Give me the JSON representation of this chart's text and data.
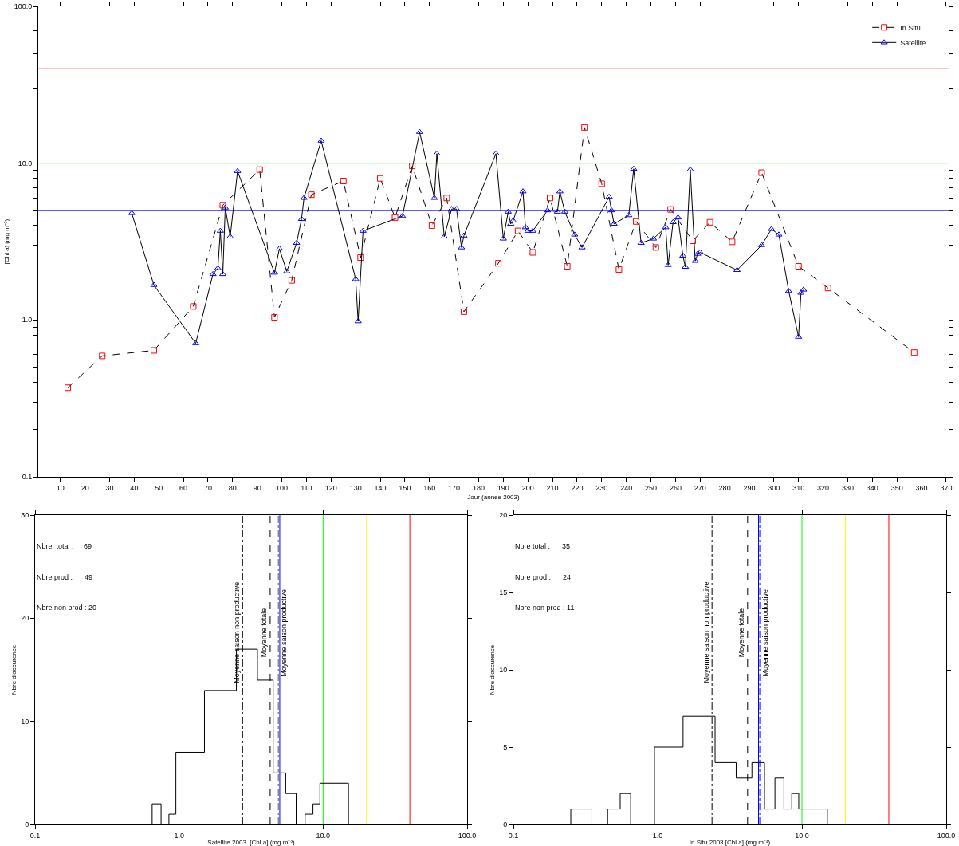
{
  "chart_data": [
    {
      "type": "line",
      "xlabel": "Jour (annee 2003)",
      "ylabel": "[Chl a] (mg m⁻³)",
      "log": "y",
      "legend": "top right",
      "grid": false,
      "xlim": [
        1,
        371
      ],
      "xticks": [
        10,
        20,
        30,
        40,
        50,
        60,
        70,
        80,
        90,
        100,
        110,
        120,
        130,
        140,
        150,
        160,
        170,
        180,
        190,
        200,
        210,
        220,
        230,
        240,
        250,
        260,
        270,
        280,
        290,
        300,
        310,
        320,
        330,
        340,
        350,
        360,
        370
      ],
      "ylim": [
        0.1,
        100
      ],
      "yticks": [
        {
          "value": 0.1,
          "label": "0.1"
        },
        {
          "value": 0.2,
          "label": null
        },
        {
          "value": 0.3,
          "label": null
        },
        {
          "value": 0.4,
          "label": null
        },
        {
          "value": 0.5,
          "label": null
        },
        {
          "value": 0.6,
          "label": null
        },
        {
          "value": 0.7,
          "label": null
        },
        {
          "value": 0.8,
          "label": null
        },
        {
          "value": 0.9,
          "label": null
        },
        {
          "value": 1,
          "label": "1.0"
        },
        {
          "value": 2,
          "label": null
        },
        {
          "value": 3,
          "label": null
        },
        {
          "value": 4,
          "label": null
        },
        {
          "value": 5,
          "label": null
        },
        {
          "value": 6,
          "label": null
        },
        {
          "value": 7,
          "label": null
        },
        {
          "value": 8,
          "label": null
        },
        {
          "value": 9,
          "label": null
        },
        {
          "value": 10,
          "label": "10.0"
        },
        {
          "value": 20,
          "label": null
        },
        {
          "value": 30,
          "label": null
        },
        {
          "value": 40,
          "label": null
        },
        {
          "value": 50,
          "label": null
        },
        {
          "value": 60,
          "label": null
        },
        {
          "value": 70,
          "label": null
        },
        {
          "value": 80,
          "label": null
        },
        {
          "value": 90,
          "label": null
        },
        {
          "value": 100,
          "label": "100.0"
        }
      ],
      "series": [
        {
          "name": "In Situ",
          "color": "#ff0000",
          "marker": "square",
          "line_style": "dashed",
          "x": [
            13,
            27,
            48,
            64,
            76,
            91,
            97,
            104,
            112,
            125,
            132,
            140,
            146,
            153,
            161,
            167,
            174,
            188,
            196,
            202,
            209,
            216,
            223,
            230,
            237,
            244,
            252,
            258,
            267,
            274,
            283,
            295,
            310,
            322,
            357
          ],
          "values": [
            0.37,
            0.59,
            0.64,
            1.22,
            5.4,
            9.1,
            1.04,
            1.79,
            6.3,
            7.7,
            2.5,
            8.0,
            4.5,
            9.6,
            4.0,
            6.0,
            1.13,
            2.3,
            3.7,
            2.7,
            6.0,
            2.2,
            16.9,
            7.4,
            2.1,
            4.25,
            2.9,
            5.07,
            3.2,
            4.2,
            3.15,
            8.7,
            2.2,
            1.6,
            0.62
          ]
        },
        {
          "name": "Satellite",
          "color": "#0000ff",
          "marker": "triangle",
          "line_style": "solid",
          "x": [
            39,
            48,
            65,
            72,
            74,
            75,
            76,
            77,
            79,
            82,
            97,
            99,
            102,
            106,
            108,
            109,
            116,
            130,
            131,
            133,
            149,
            156,
            162,
            163,
            166,
            169,
            171,
            173,
            174,
            187,
            190,
            192,
            193,
            194,
            198,
            199,
            200,
            202,
            208,
            212,
            213,
            215,
            219,
            222,
            233,
            234,
            235,
            241,
            243,
            246,
            251,
            256,
            257,
            259,
            261,
            263,
            264,
            266,
            268,
            269,
            270,
            285,
            295,
            299,
            302,
            306,
            310,
            311,
            312
          ],
          "values": [
            4.8,
            1.67,
            0.71,
            1.96,
            2.14,
            3.7,
            1.96,
            5.2,
            3.4,
            8.9,
            2.0,
            2.85,
            2.04,
            3.1,
            4.4,
            6.0,
            13.9,
            1.82,
            0.98,
            3.7,
            4.6,
            15.8,
            6.0,
            11.5,
            3.4,
            5.1,
            5.1,
            2.9,
            3.45,
            11.5,
            3.3,
            4.9,
            4.1,
            4.3,
            6.6,
            3.9,
            3.7,
            3.7,
            5.0,
            4.9,
            6.6,
            4.9,
            3.5,
            2.9,
            6.1,
            5.0,
            4.1,
            4.65,
            9.2,
            3.1,
            3.3,
            3.9,
            2.24,
            4.2,
            4.5,
            2.57,
            2.18,
            9.1,
            2.38,
            2.64,
            2.7,
            2.08,
            3.0,
            3.8,
            3.5,
            1.53,
            0.78,
            1.49,
            1.56
          ]
        }
      ],
      "ref_lines": [
        {
          "axis": "y",
          "value": 40,
          "color": "#ff0000"
        },
        {
          "axis": "y",
          "value": 20,
          "color": "#ffff00"
        },
        {
          "axis": "y",
          "value": 10,
          "color": "#00ff00"
        },
        {
          "axis": "y",
          "value": 5,
          "color": "#0000ff"
        }
      ]
    },
    {
      "type": "histogram",
      "xlabel": "Satellite 2003  [Chl a] (mg m⁻³)",
      "ylabel": "Nbre d'occurence",
      "log": "x",
      "grid": false,
      "bins": [
        0.65,
        0.75,
        0.85,
        0.95,
        1.5,
        2.5,
        3.5,
        4.5,
        5.5,
        6.5,
        7.5,
        8.5,
        9.5,
        15
      ],
      "values": [
        2,
        0,
        1,
        7,
        13,
        17,
        14,
        5,
        3,
        0,
        1,
        2,
        4
      ],
      "xlim": [
        0.1,
        100
      ],
      "xticks": [
        {
          "value": 0.1,
          "label": "0.1"
        },
        {
          "value": 1,
          "label": "1.0"
        },
        {
          "value": 10,
          "label": "10.0"
        },
        {
          "value": 100,
          "label": "100.0"
        }
      ],
      "ylim": [
        0,
        30
      ],
      "yticks": [
        0,
        10,
        20,
        30
      ],
      "annotations": [
        "Nbre  total :     69",
        "Nbre prod :      49",
        "Nbre non prod : 20"
      ],
      "ref_lines": [
        {
          "axis": "x",
          "value": 2.76,
          "label": "Moyenne saison non productive",
          "color": "#000000",
          "line_style": "dotted"
        },
        {
          "axis": "x",
          "value": 4.29,
          "label": "Moyenne totale",
          "color": "#000000",
          "line_style": "dashed"
        },
        {
          "axis": "x",
          "value": 4.89,
          "label": "Moyenne saison productive",
          "color": "#555555",
          "line_style": "dotted"
        },
        {
          "axis": "x",
          "value": 5,
          "color": "#0000ff"
        },
        {
          "axis": "x",
          "value": 10,
          "color": "#00ff00"
        },
        {
          "axis": "x",
          "value": 20,
          "color": "#ffff00"
        },
        {
          "axis": "x",
          "value": 40,
          "color": "#ff0000"
        }
      ]
    },
    {
      "type": "histogram",
      "xlabel": "In Situ 2003 [Chl a] (mg m⁻³)",
      "ylabel": "Nbre d'occurence",
      "log": "x",
      "grid": false,
      "bins": [
        0.25,
        0.35,
        0.45,
        0.55,
        0.65,
        0.75,
        0.85,
        0.95,
        1.5,
        2.5,
        3.5,
        4.5,
        5.5,
        6.5,
        7.5,
        8.5,
        9.5,
        15
      ],
      "values": [
        1,
        0,
        1,
        2,
        0,
        0,
        0,
        5,
        7,
        4,
        3,
        4,
        1,
        3,
        1,
        2,
        1
      ],
      "xlim": [
        0.1,
        100
      ],
      "xticks": [
        {
          "value": 0.1,
          "label": "0.1"
        },
        {
          "value": 1,
          "label": "1.0"
        },
        {
          "value": 10,
          "label": "10.0"
        },
        {
          "value": 100,
          "label": "100.0"
        }
      ],
      "ylim": [
        0,
        20
      ],
      "yticks": [
        0,
        5,
        10,
        15,
        20
      ],
      "annotations": [
        "Nbre total :      35",
        "Nbre prod :      24",
        "Nbre non prod : 11"
      ],
      "ref_lines": [
        {
          "axis": "x",
          "value": 2.38,
          "label": "Moyenne saison non productive",
          "color": "#000000",
          "line_style": "dotted"
        },
        {
          "axis": "x",
          "value": 4.2,
          "label": "Moyenne totale",
          "color": "#000000",
          "line_style": "dashed"
        },
        {
          "axis": "x",
          "value": 5.1,
          "label": "Moyenne saison productive",
          "color": "#0000ff",
          "line_style": "dotted"
        },
        {
          "axis": "x",
          "value": 5,
          "color": "#0000ff"
        },
        {
          "axis": "x",
          "value": 10,
          "color": "#00ff00"
        },
        {
          "axis": "x",
          "value": 20,
          "color": "#ffff00"
        },
        {
          "axis": "x",
          "value": 40,
          "color": "#ff0000"
        }
      ]
    }
  ]
}
